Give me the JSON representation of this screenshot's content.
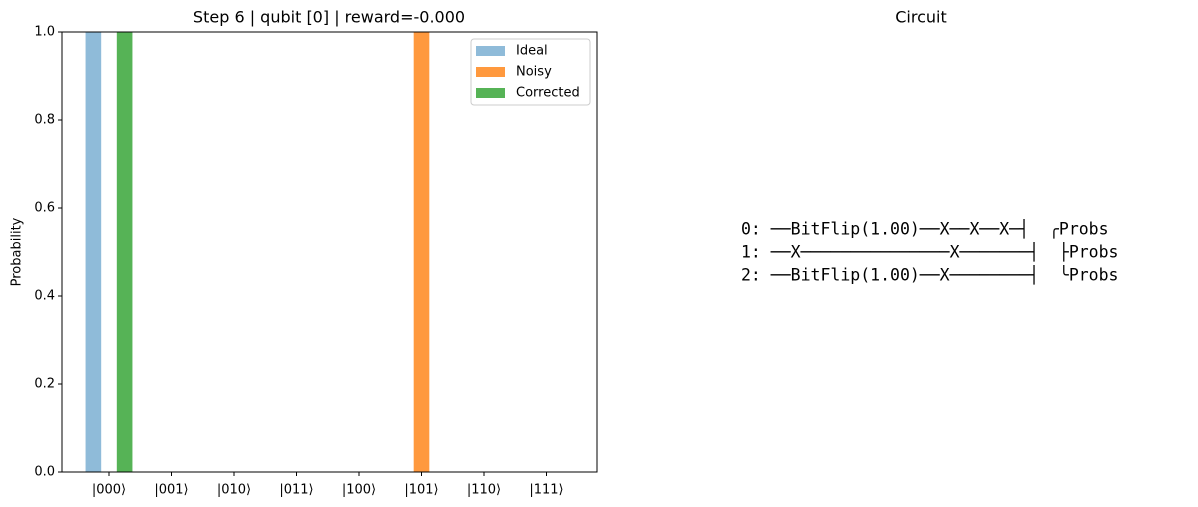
{
  "chart_data": {
    "type": "bar",
    "title": "Step 6 | qubit [0] | reward=-0.000",
    "y_label": "Probability",
    "categories": [
      "|000⟩",
      "|001⟩",
      "|010⟩",
      "|011⟩",
      "|100⟩",
      "|101⟩",
      "|110⟩",
      "|111⟩"
    ],
    "series": [
      {
        "name": "Ideal",
        "color": "#8fbbd9",
        "values": [
          1,
          0,
          0,
          0,
          0,
          0,
          0,
          0
        ]
      },
      {
        "name": "Noisy",
        "color": "#ff993e",
        "values": [
          0,
          0,
          0,
          0,
          0,
          1,
          0,
          0
        ]
      },
      {
        "name": "Corrected",
        "color": "#56b356",
        "values": [
          1,
          0,
          0,
          0,
          0,
          0,
          0,
          0
        ]
      }
    ],
    "ylim": [
      0,
      1
    ],
    "yticks": [
      {
        "value": 0,
        "label": "0.0"
      },
      0.2,
      0.4,
      0.6,
      0.8,
      {
        "value": 1,
        "label": "1.0"
      }
    ],
    "legend": "upper right"
  },
  "circuit_panel": {
    "title": "Circuit",
    "lines": [
      "0: ──BitFlip(1.00)──X──X──X─┤  ╭Probs",
      "1: ──X───────────────X───────┤  ├Probs",
      "2: ──BitFlip(1.00)──X────────┤  ╰Probs"
    ]
  }
}
